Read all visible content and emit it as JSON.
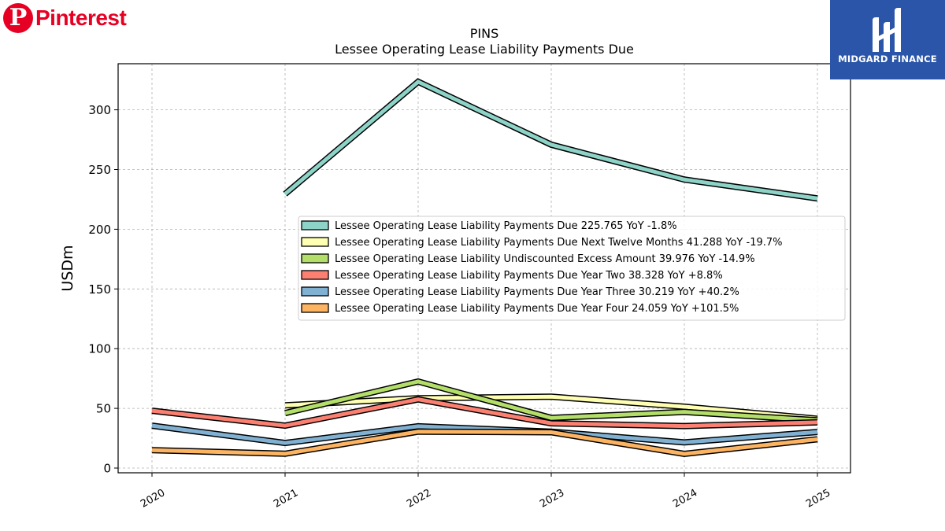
{
  "brand": {
    "logo_text": "Pinterest"
  },
  "sponsor": {
    "name": "MIDGARD FINANCE"
  },
  "chart_data": {
    "type": "line",
    "title": "PINS",
    "subtitle": "Lessee Operating Lease Liability Payments Due",
    "xlabel": "",
    "ylabel": "USDm",
    "x": [
      "2020",
      "2021",
      "2022",
      "2023",
      "2024",
      "2025"
    ],
    "ylim": [
      -3,
      340
    ],
    "yticks": [
      0,
      50,
      100,
      150,
      200,
      250,
      300
    ],
    "grid": true,
    "legend_position": "center-right",
    "series": [
      {
        "name": "Lessee Operating Lease Liability Payments Due",
        "legend": "Lessee Operating Lease Liability Payments Due  225.765 YoY -1.8%",
        "color": "#8DD3C7",
        "values": [
          null,
          229.5,
          323.5,
          270.8,
          241.6,
          225.8
        ]
      },
      {
        "name": "Lessee Operating Lease Liability Payments Due Next Twelve Months",
        "legend": "Lessee Operating Lease Liability Payments Due Next Twelve Months  41.288 YoY -19.7%",
        "color": "#FFFFB3",
        "values": [
          null,
          52.5,
          58.5,
          59.8,
          51.4,
          41.3
        ]
      },
      {
        "name": "Lessee Operating Lease Liability Undiscounted Excess Amount",
        "legend": "Lessee Operating Lease Liability Undiscounted Excess Amount  39.976 YoY -14.9%",
        "color": "#B3DE69",
        "values": [
          null,
          46.0,
          72.5,
          42.0,
          47.0,
          40.0
        ]
      },
      {
        "name": "Lessee Operating Lease Liability Payments Due Year Two",
        "legend": "Lessee Operating Lease Liability Payments Due Year Two  38.328 YoY +8.8%",
        "color": "#FB8072",
        "values": [
          48.0,
          35.5,
          57.5,
          37.5,
          35.2,
          38.3
        ]
      },
      {
        "name": "Lessee Operating Lease Liability Payments Due Year Three",
        "legend": "Lessee Operating Lease Liability Payments Due Year Three  30.219 YoY +40.2%",
        "color": "#80B1D3",
        "values": [
          35.5,
          21.0,
          35.0,
          30.5,
          21.5,
          30.2
        ]
      },
      {
        "name": "Lessee Operating Lease Liability Payments Due Year Four",
        "legend": "Lessee Operating Lease Liability Payments Due Year Four  24.059 YoY +101.5%",
        "color": "#FDB462",
        "values": [
          15.0,
          12.0,
          30.5,
          30.0,
          11.9,
          24.1
        ]
      }
    ]
  }
}
